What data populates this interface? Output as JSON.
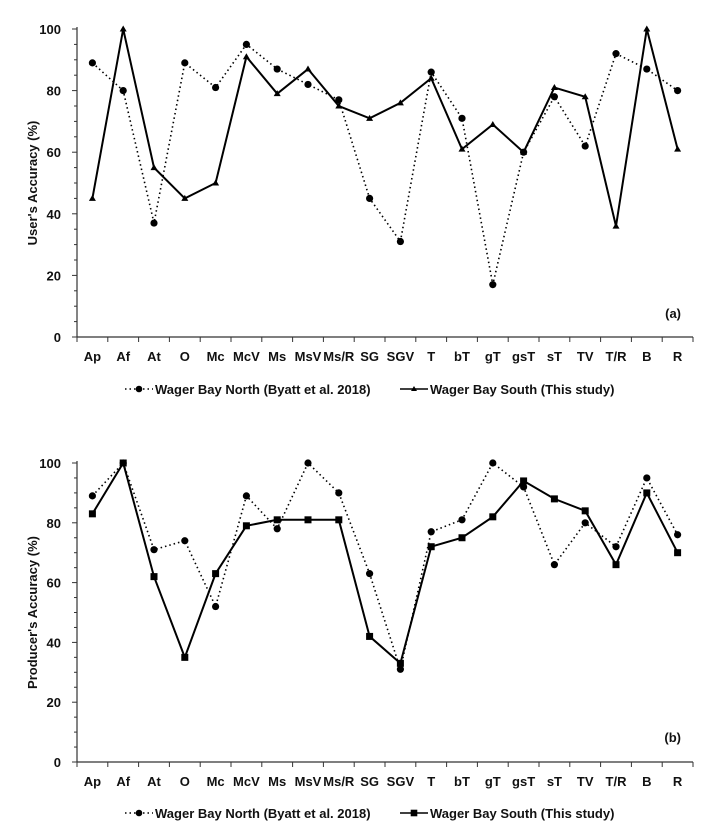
{
  "chart_data": [
    {
      "type": "line",
      "ylabel": "User's Accuracy (%)",
      "xlabel": "",
      "panel_label": "(a)",
      "ylim": [
        0,
        100
      ],
      "yticks": [
        0,
        20,
        40,
        60,
        80,
        100
      ],
      "grid": false,
      "legend_placement": "bottom",
      "categories": [
        "Ap",
        "Af",
        "At",
        "O",
        "Mc",
        "McV",
        "Ms",
        "MsV",
        "Ms/R",
        "SG",
        "SGV",
        "T",
        "bT",
        "gT",
        "gsT",
        "sT",
        "TV",
        "T/R",
        "B",
        "R"
      ],
      "series": [
        {
          "name": "Wager Bay North (Byatt et al. 2018)",
          "style": "dotted",
          "marker": "circle",
          "values": [
            89,
            80,
            37,
            89,
            81,
            95,
            87,
            82,
            77,
            45,
            31,
            86,
            71,
            17,
            60,
            78,
            62,
            92,
            87,
            80
          ]
        },
        {
          "name": "Wager Bay South (This study)",
          "style": "solid",
          "marker": "triangle",
          "values": [
            45,
            100,
            55,
            45,
            50,
            91,
            79,
            87,
            75,
            71,
            76,
            84,
            61,
            69,
            60,
            81,
            78,
            36,
            100,
            61
          ]
        }
      ]
    },
    {
      "type": "line",
      "ylabel": "Producer's Accuracy (%)",
      "xlabel": "",
      "panel_label": "(b)",
      "ylim": [
        0,
        100
      ],
      "yticks": [
        0,
        20,
        40,
        60,
        80,
        100
      ],
      "grid": false,
      "legend_placement": "bottom",
      "categories": [
        "Ap",
        "Af",
        "At",
        "O",
        "Mc",
        "McV",
        "Ms",
        "MsV",
        "Ms/R",
        "SG",
        "SGV",
        "T",
        "bT",
        "gT",
        "gsT",
        "sT",
        "TV",
        "T/R",
        "B",
        "R"
      ],
      "series": [
        {
          "name": "Wager Bay North (Byatt et al. 2018)",
          "style": "dotted",
          "marker": "circle",
          "values": [
            89,
            100,
            71,
            74,
            52,
            89,
            78,
            100,
            90,
            63,
            31,
            77,
            81,
            100,
            92,
            66,
            80,
            72,
            95,
            76
          ]
        },
        {
          "name": "Wager Bay South (This study)",
          "style": "solid",
          "marker": "square",
          "values": [
            83,
            100,
            62,
            35,
            63,
            79,
            81,
            81,
            81,
            42,
            33,
            72,
            75,
            82,
            94,
            88,
            84,
            66,
            90,
            70
          ]
        }
      ]
    }
  ],
  "colors": {
    "line": "#000000",
    "axis": "#333333"
  }
}
